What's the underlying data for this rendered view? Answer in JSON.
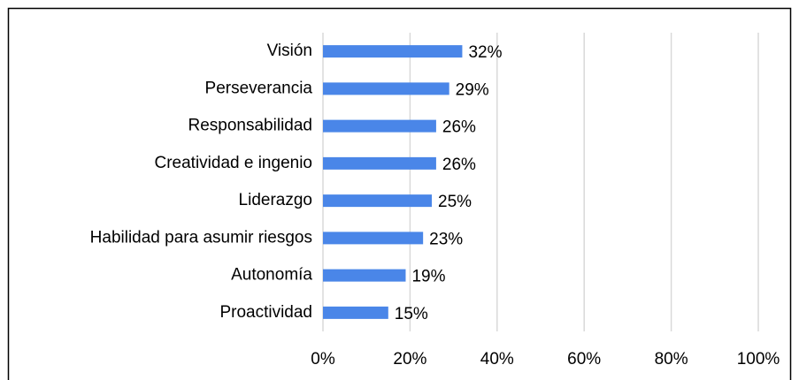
{
  "chart_data": {
    "type": "bar",
    "orientation": "horizontal",
    "categories": [
      "Visión",
      "Perseverancia",
      "Responsabilidad",
      "Creatividad e ingenio",
      "Liderazgo",
      "Habilidad para asumir riesgos",
      "Autonomía",
      "Proactividad"
    ],
    "values": [
      32,
      29,
      26,
      26,
      25,
      23,
      19,
      15
    ],
    "value_labels": [
      "32%",
      "29%",
      "26%",
      "26%",
      "25%",
      "23%",
      "19%",
      "15%"
    ],
    "color": "#4a86e8",
    "xlim": [
      0,
      100
    ],
    "xticks": [
      {
        "value": 0,
        "label": "0%"
      },
      {
        "value": 20,
        "label": "20%"
      },
      {
        "value": 40,
        "label": "40%"
      },
      {
        "value": 60,
        "label": "60%"
      },
      {
        "value": 80,
        "label": "80%"
      },
      {
        "value": 100,
        "label": "100%"
      }
    ],
    "grid": true
  }
}
